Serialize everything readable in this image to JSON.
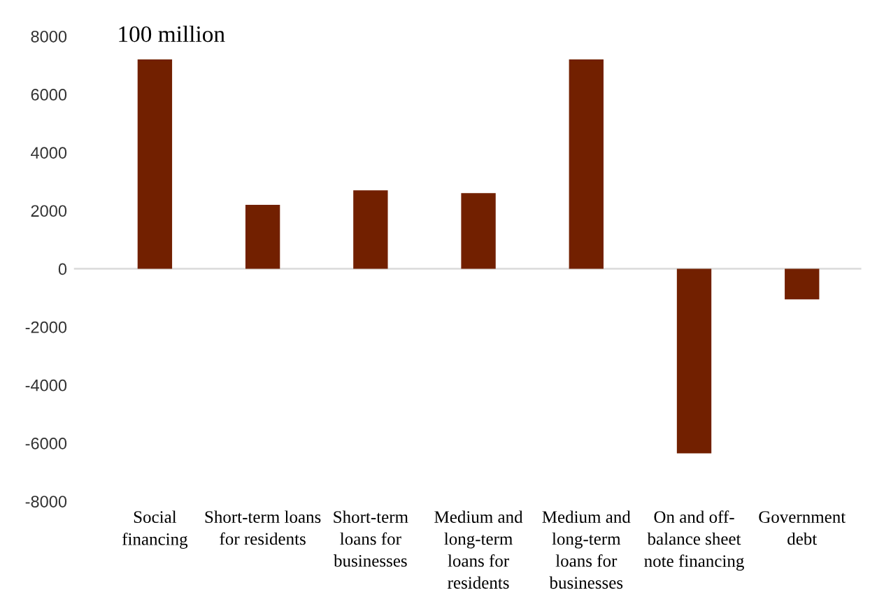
{
  "chart_data": {
    "type": "bar",
    "ylabel": "100 million",
    "categories": [
      "Social\nfinancing",
      "Short-term loans\nfor residents",
      "Short-term\nloans for\nbusinesses",
      "Medium and\nlong-term\nloans for\nresidents",
      "Medium and\nlong-term\nloans for\nbusinesses",
      "On and off-\nbalance sheet\nnote financing",
      "Government\ndebt"
    ],
    "values": [
      7200,
      2200,
      2700,
      2600,
      7200,
      -6350,
      -1050
    ],
    "color": "#722000",
    "ylim": [
      -8000,
      8000
    ],
    "yticks": [
      -8000,
      -6000,
      -4000,
      -2000,
      0,
      2000,
      4000,
      6000,
      8000
    ],
    "ref_lines": [
      {
        "axis": "y",
        "value": 0,
        "color": "#dddddd"
      }
    ],
    "grid": false,
    "legend": false
  }
}
